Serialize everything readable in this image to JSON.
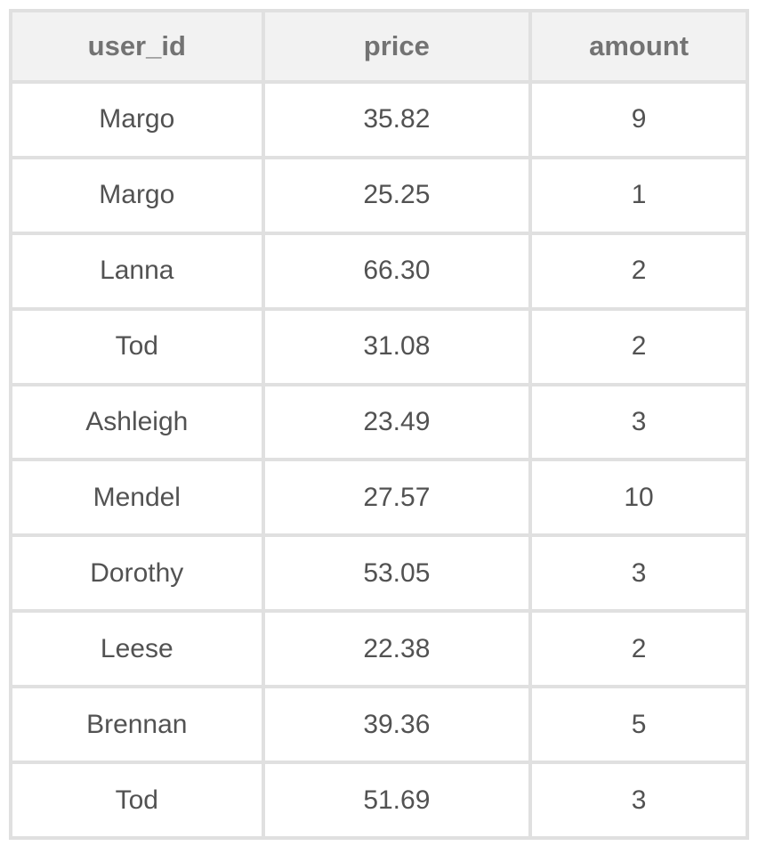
{
  "colors": {
    "page_bg": "#ffffff",
    "border": "#e0e0e0",
    "header_bg": "#f2f2f2",
    "header_text": "#737373",
    "body_text": "#525252"
  },
  "chart_data": {
    "type": "table",
    "columns": [
      "user_id",
      "price",
      "amount"
    ],
    "rows": [
      [
        "Margo",
        "35.82",
        "9"
      ],
      [
        "Margo",
        "25.25",
        "1"
      ],
      [
        "Lanna",
        "66.30",
        "2"
      ],
      [
        "Tod",
        "31.08",
        "2"
      ],
      [
        "Ashleigh",
        "23.49",
        "3"
      ],
      [
        "Mendel",
        "27.57",
        "10"
      ],
      [
        "Dorothy",
        "53.05",
        "3"
      ],
      [
        "Leese",
        "22.38",
        "2"
      ],
      [
        "Brennan",
        "39.36",
        "5"
      ],
      [
        "Tod",
        "51.69",
        "3"
      ]
    ]
  }
}
